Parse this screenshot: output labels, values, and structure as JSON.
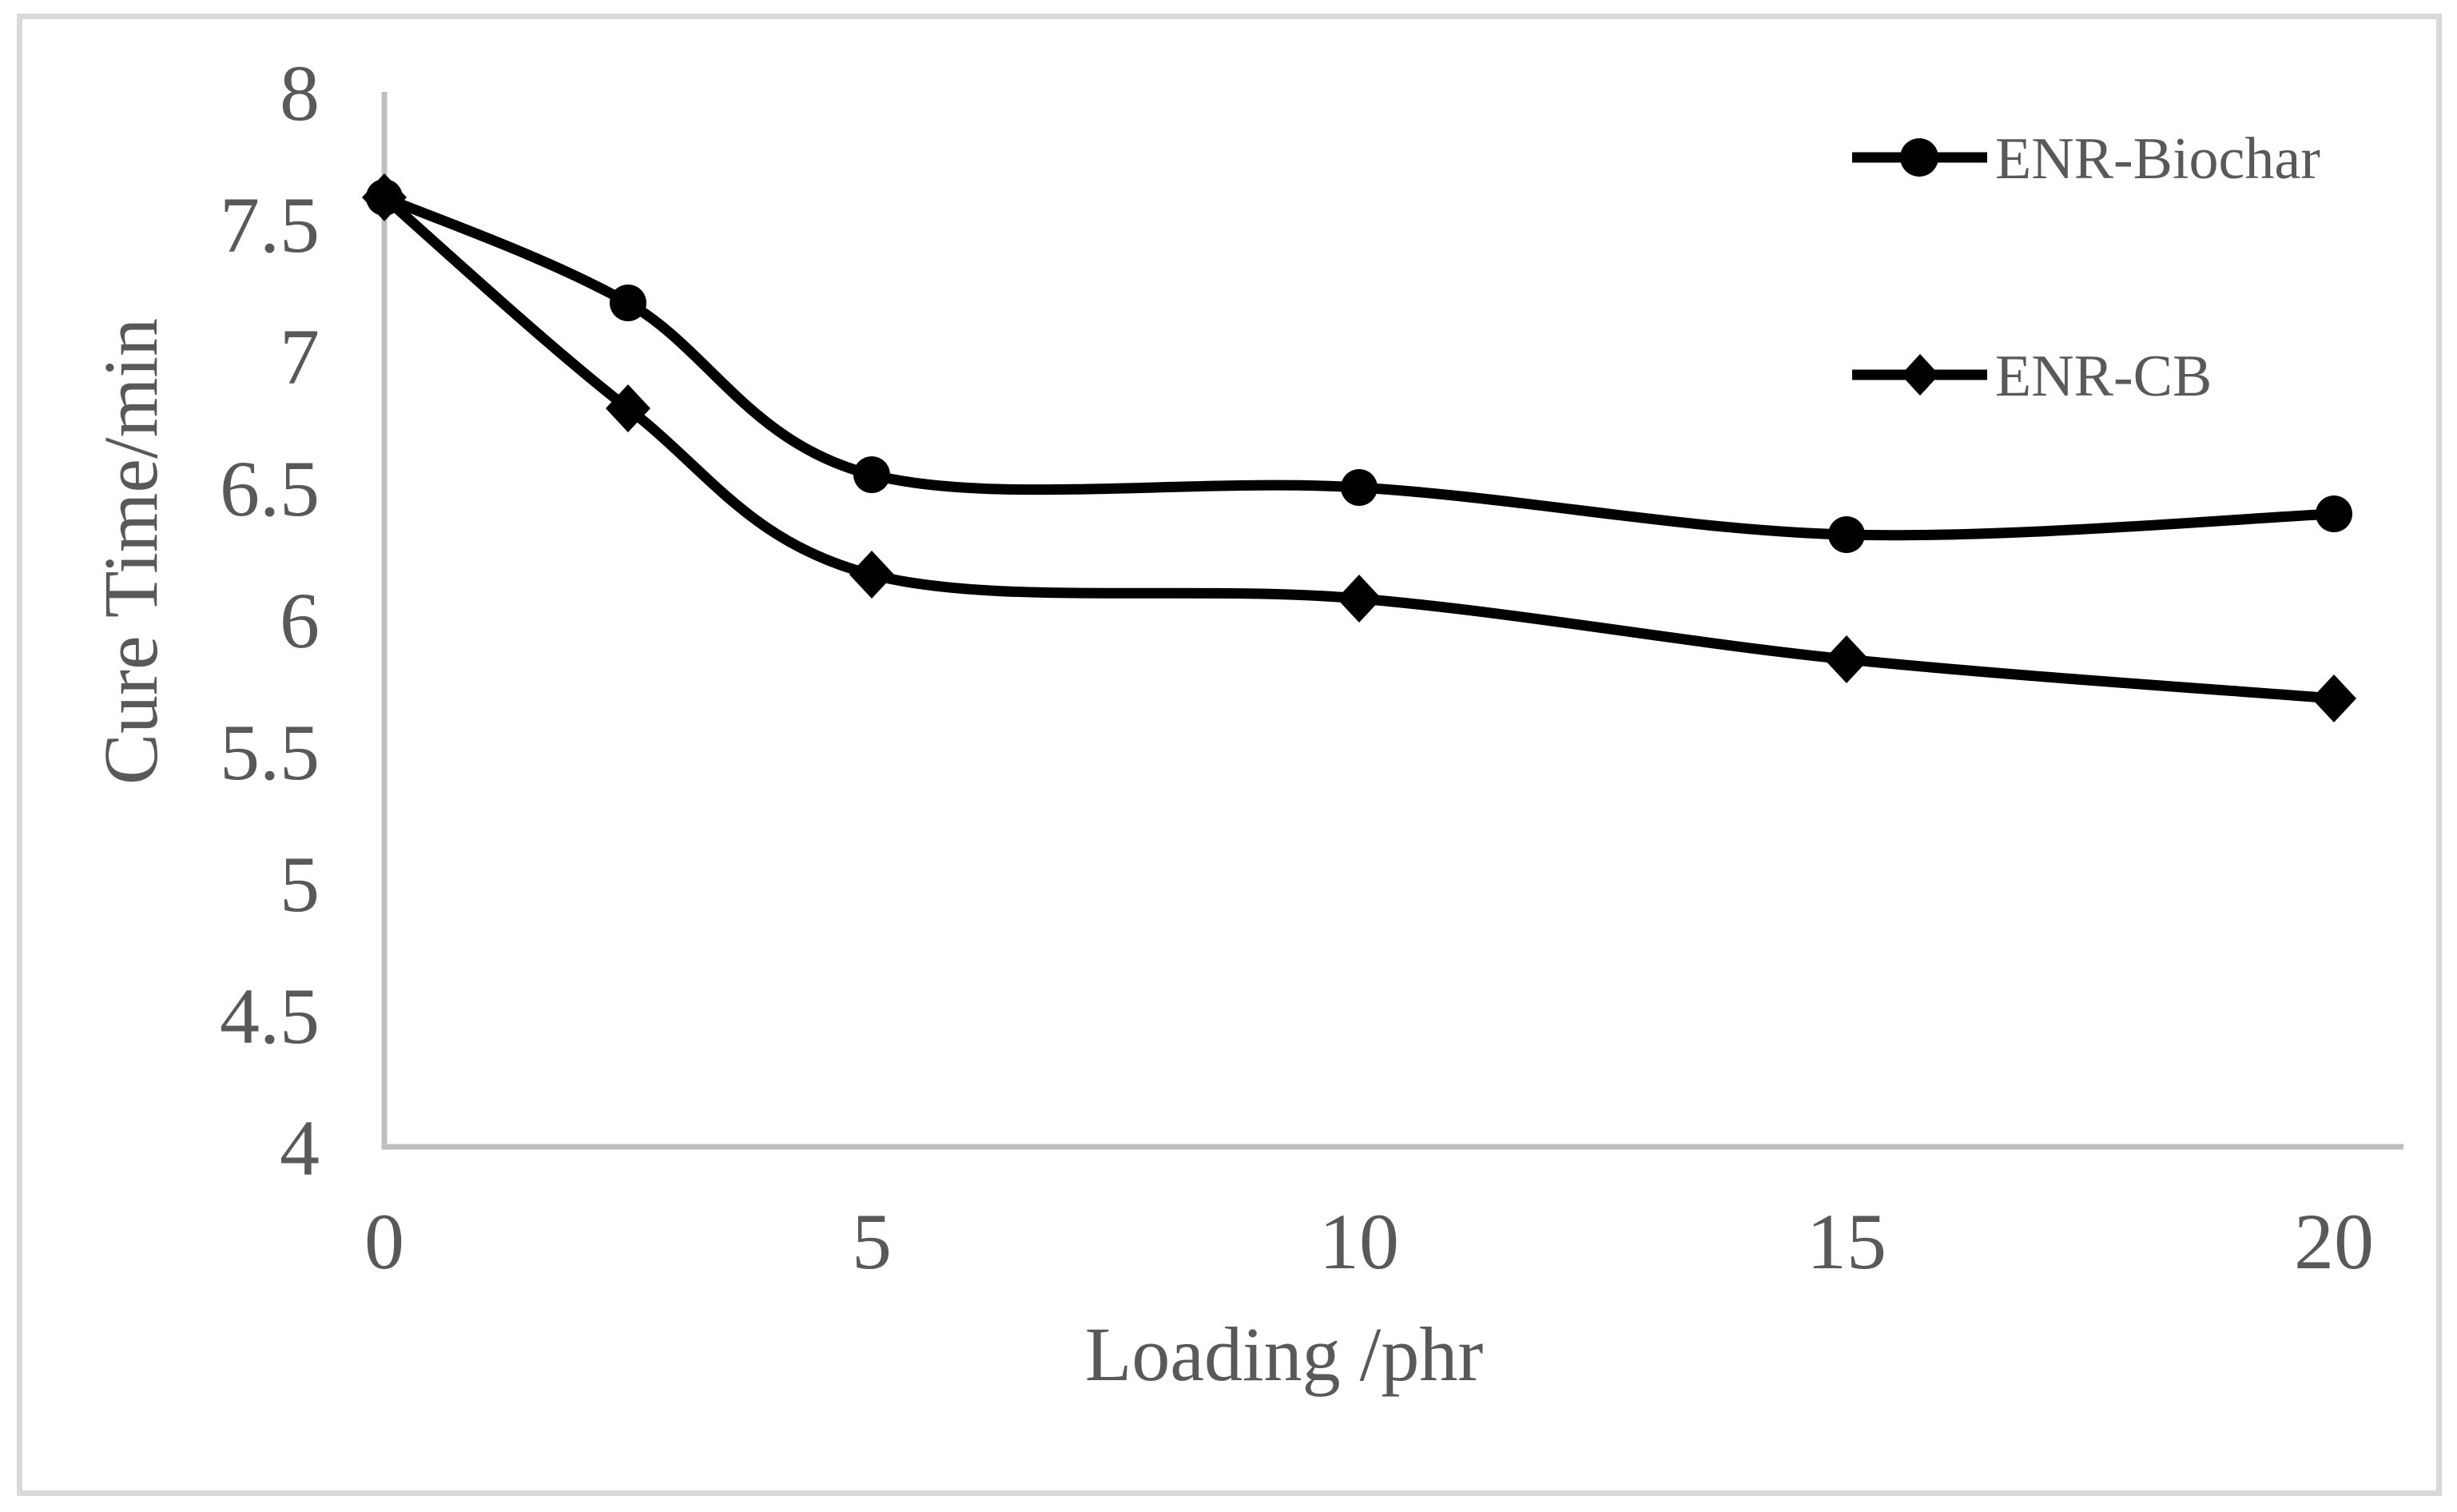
{
  "chart_data": {
    "type": "line",
    "title": "",
    "xlabel": "Loading /phr",
    "ylabel": "Cure Time/min",
    "x": [
      0,
      2.5,
      5,
      10,
      15,
      20
    ],
    "series": [
      {
        "name": "ENR-Biochar",
        "marker": "circle",
        "values": [
          7.6,
          7.2,
          6.55,
          6.5,
          6.32,
          6.4
        ]
      },
      {
        "name": "ENR-CB",
        "marker": "diamond",
        "values": [
          7.6,
          6.8,
          6.17,
          6.08,
          5.85,
          5.7
        ]
      }
    ],
    "xlim": [
      0,
      20
    ],
    "ylim": [
      4,
      8
    ],
    "x_ticks": [
      0,
      5,
      10,
      15,
      20
    ],
    "y_ticks": [
      4,
      4.5,
      5,
      5.5,
      6,
      6.5,
      7,
      7.5,
      8
    ],
    "grid": false,
    "smoothed_lines": true,
    "legend_position": "top-right"
  },
  "legend": {
    "items": [
      {
        "label": "ENR-Biochar",
        "marker": "circle"
      },
      {
        "label": "ENR-CB",
        "marker": "diamond"
      }
    ]
  },
  "colors": {
    "series": "#000000",
    "axis_line": "#bfbfbf",
    "frame_border": "#d9d9d9",
    "text": "#595959",
    "background": "#ffffff"
  }
}
